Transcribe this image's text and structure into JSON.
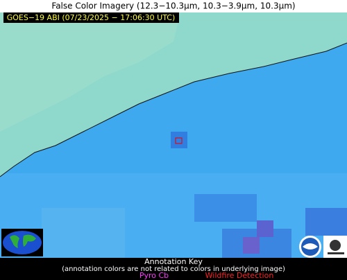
{
  "header": {
    "title": "False Color Imagery (12.3−10.3µm, 10.3−3.9µm, 10.3µm)"
  },
  "image": {
    "timestamp": "GOES−19 ABI (07/23/2025 − 17:06:30 UTC)"
  },
  "annotation_key": {
    "title": "Annotation Key",
    "note": "(annotation colors are not related to colors in underlying image)",
    "items": [
      {
        "label": "Pyro Cb"
      },
      {
        "label": "Wildfire Detection"
      }
    ]
  }
}
